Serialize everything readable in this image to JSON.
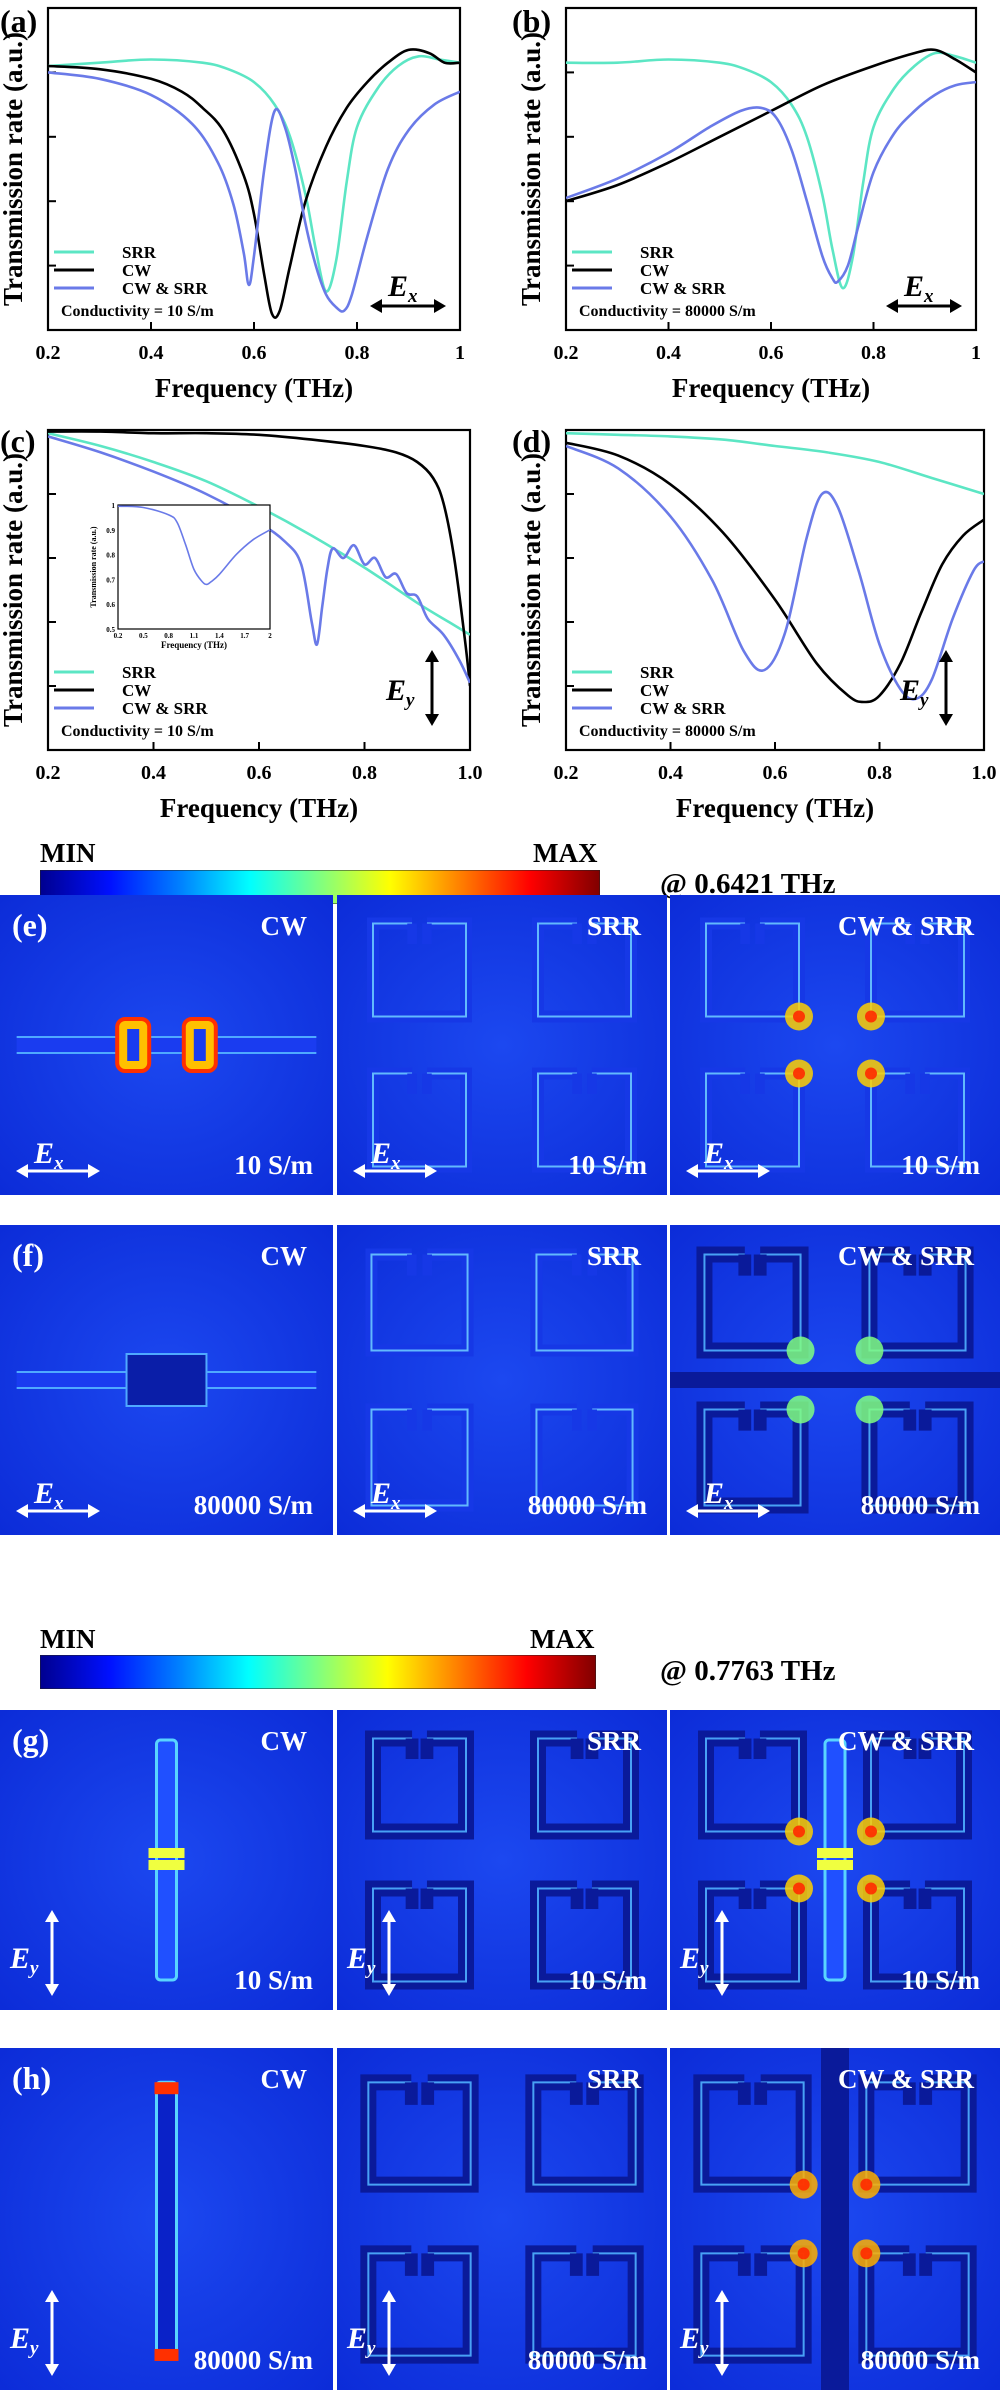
{
  "chart_data": [
    {
      "id": "a",
      "label": "(a)",
      "type": "line",
      "xlabel": "Frequency (THz)",
      "ylabel": "Transmission rate (a.u.)",
      "xlim": [
        0.2,
        1.0
      ],
      "xticks": [
        "0.2",
        "0.4",
        "0.6",
        "0.8",
        "1"
      ],
      "ylim": [
        0,
        1
      ],
      "conductivity": "Conductivity = 10 S/m",
      "polarization": "x",
      "legend_position": "bottom-left",
      "legend": [
        "SRR",
        "CW",
        "CW & SRR"
      ],
      "series": [
        {
          "name": "SRR",
          "color": "#5ce6c4",
          "x": [
            0.2,
            0.3,
            0.4,
            0.5,
            0.55,
            0.6,
            0.64,
            0.67,
            0.7,
            0.72,
            0.74,
            0.76,
            0.78,
            0.8,
            0.84,
            0.88,
            0.92,
            0.96,
            1.0
          ],
          "y": [
            0.82,
            0.83,
            0.84,
            0.83,
            0.81,
            0.77,
            0.7,
            0.6,
            0.42,
            0.25,
            0.12,
            0.22,
            0.46,
            0.63,
            0.75,
            0.82,
            0.85,
            0.84,
            0.83
          ]
        },
        {
          "name": "CW",
          "color": "#000000",
          "x": [
            0.2,
            0.3,
            0.4,
            0.46,
            0.5,
            0.54,
            0.58,
            0.6,
            0.62,
            0.635,
            0.65,
            0.67,
            0.7,
            0.74,
            0.78,
            0.82,
            0.86,
            0.9,
            0.94,
            0.97,
            1.0
          ],
          "y": [
            0.82,
            0.81,
            0.78,
            0.74,
            0.69,
            0.62,
            0.48,
            0.36,
            0.17,
            0.05,
            0.06,
            0.2,
            0.4,
            0.57,
            0.69,
            0.77,
            0.83,
            0.87,
            0.86,
            0.83,
            0.83
          ]
        },
        {
          "name": "CW & SRR",
          "color": "#6a7ae8",
          "x": [
            0.2,
            0.3,
            0.4,
            0.48,
            0.53,
            0.56,
            0.58,
            0.59,
            0.6,
            0.62,
            0.64,
            0.66,
            0.68,
            0.7,
            0.72,
            0.74,
            0.76,
            0.775,
            0.79,
            0.82,
            0.86,
            0.9,
            0.95,
            1.0
          ],
          "y": [
            0.8,
            0.78,
            0.73,
            0.64,
            0.52,
            0.39,
            0.24,
            0.14,
            0.23,
            0.5,
            0.68,
            0.63,
            0.5,
            0.33,
            0.2,
            0.11,
            0.07,
            0.06,
            0.11,
            0.29,
            0.5,
            0.62,
            0.7,
            0.74
          ]
        }
      ]
    },
    {
      "id": "b",
      "label": "(b)",
      "type": "line",
      "xlabel": "Frequency (THz)",
      "ylabel": "Transmission rate (a.u.)",
      "xlim": [
        0.2,
        1.0
      ],
      "xticks": [
        "0.2",
        "0.4",
        "0.6",
        "0.8",
        "1"
      ],
      "ylim": [
        0,
        1
      ],
      "conductivity": "Conductivity = 80000 S/m",
      "polarization": "x",
      "legend_position": "bottom-left",
      "legend": [
        "SRR",
        "CW",
        "CW & SRR"
      ],
      "series": [
        {
          "name": "SRR",
          "color": "#5ce6c4",
          "x": [
            0.2,
            0.3,
            0.4,
            0.5,
            0.55,
            0.6,
            0.64,
            0.67,
            0.7,
            0.72,
            0.74,
            0.76,
            0.78,
            0.8,
            0.84,
            0.88,
            0.92,
            0.96,
            1.0
          ],
          "y": [
            0.83,
            0.83,
            0.84,
            0.83,
            0.81,
            0.77,
            0.7,
            0.6,
            0.42,
            0.25,
            0.13,
            0.23,
            0.46,
            0.63,
            0.75,
            0.82,
            0.86,
            0.85,
            0.83
          ]
        },
        {
          "name": "CW",
          "color": "#000000",
          "x": [
            0.2,
            0.3,
            0.4,
            0.5,
            0.6,
            0.7,
            0.8,
            0.88,
            0.92,
            0.96,
            1.0
          ],
          "y": [
            0.4,
            0.45,
            0.52,
            0.6,
            0.68,
            0.76,
            0.82,
            0.86,
            0.87,
            0.84,
            0.8
          ]
        },
        {
          "name": "CW & SRR",
          "color": "#6a7ae8",
          "x": [
            0.2,
            0.3,
            0.4,
            0.48,
            0.54,
            0.58,
            0.61,
            0.64,
            0.67,
            0.7,
            0.72,
            0.73,
            0.75,
            0.77,
            0.8,
            0.84,
            0.88,
            0.92,
            0.96,
            1.0
          ],
          "y": [
            0.41,
            0.47,
            0.55,
            0.63,
            0.68,
            0.69,
            0.66,
            0.56,
            0.4,
            0.23,
            0.16,
            0.15,
            0.2,
            0.32,
            0.49,
            0.61,
            0.68,
            0.73,
            0.76,
            0.77
          ]
        }
      ]
    },
    {
      "id": "c",
      "label": "(c)",
      "type": "line",
      "xlabel": "Frequency (THz)",
      "ylabel": "Transmission rate (a.u.)",
      "xlim": [
        0.2,
        1.0
      ],
      "xticks": [
        "0.2",
        "0.4",
        "0.6",
        "0.8",
        "1.0"
      ],
      "ylim": [
        0,
        1
      ],
      "conductivity": "Conductivity = 10 S/m",
      "polarization": "y",
      "legend_position": "bottom-left",
      "legend": [
        "SRR",
        "CW",
        "CW & SRR"
      ],
      "series": [
        {
          "name": "SRR",
          "color": "#5ce6c4",
          "x": [
            0.2,
            0.3,
            0.4,
            0.5,
            0.6,
            0.7,
            0.8,
            0.9,
            0.96,
            1.0
          ],
          "y": [
            0.99,
            0.95,
            0.9,
            0.84,
            0.76,
            0.67,
            0.57,
            0.46,
            0.4,
            0.36
          ]
        },
        {
          "name": "CW",
          "color": "#000000",
          "x": [
            0.2,
            0.3,
            0.4,
            0.5,
            0.6,
            0.7,
            0.8,
            0.86,
            0.9,
            0.93,
            0.95,
            0.97,
            0.99,
            1.0
          ],
          "y": [
            0.995,
            0.995,
            0.99,
            0.99,
            0.985,
            0.97,
            0.95,
            0.93,
            0.9,
            0.85,
            0.77,
            0.6,
            0.35,
            0.2
          ]
        },
        {
          "name": "CW & SRR",
          "color": "#6a7ae8",
          "x": [
            0.2,
            0.3,
            0.4,
            0.5,
            0.6,
            0.65,
            0.68,
            0.7,
            0.71,
            0.72,
            0.73,
            0.74,
            0.76,
            0.78,
            0.8,
            0.82,
            0.84,
            0.86,
            0.88,
            0.9,
            0.92,
            0.95,
            0.98,
            1.0
          ],
          "y": [
            0.98,
            0.93,
            0.87,
            0.8,
            0.71,
            0.65,
            0.58,
            0.4,
            0.33,
            0.45,
            0.57,
            0.63,
            0.6,
            0.64,
            0.58,
            0.6,
            0.54,
            0.55,
            0.49,
            0.48,
            0.41,
            0.36,
            0.28,
            0.21
          ]
        }
      ],
      "inset": {
        "xlabel": "Frequency (THz)",
        "ylabel": "Transmission rate (a.u.)",
        "xlim": [
          0.2,
          2.0
        ],
        "ylim": [
          0.5,
          1.0
        ],
        "xticks": [
          "0.2",
          "0.5",
          "0.8",
          "1.1",
          "1.4",
          "1.7",
          "2"
        ],
        "yticks": [
          "0.5",
          "0.6",
          "0.7",
          "0.8",
          "0.9",
          "1"
        ],
        "color": "#6a7ae8",
        "x": [
          0.2,
          0.5,
          0.8,
          0.9,
          1.0,
          1.1,
          1.2,
          1.25,
          1.3,
          1.4,
          1.6,
          1.8,
          2.0
        ],
        "y": [
          0.995,
          0.99,
          0.96,
          0.93,
          0.84,
          0.74,
          0.69,
          0.68,
          0.69,
          0.72,
          0.8,
          0.86,
          0.9
        ]
      }
    },
    {
      "id": "d",
      "label": "(d)",
      "type": "line",
      "xlabel": "Frequency (THz)",
      "ylabel": "Transmission rate (a.u.)",
      "xlim": [
        0.2,
        1.0
      ],
      "xticks": [
        "0.2",
        "0.4",
        "0.6",
        "0.8",
        "1.0"
      ],
      "ylim": [
        0,
        1
      ],
      "conductivity": "Conductivity = 80000 S/m",
      "polarization": "y",
      "legend_position": "bottom-left",
      "legend": [
        "SRR",
        "CW",
        "CW & SRR"
      ],
      "series": [
        {
          "name": "SRR",
          "color": "#5ce6c4",
          "x": [
            0.2,
            0.3,
            0.4,
            0.5,
            0.6,
            0.7,
            0.8,
            0.9,
            1.0
          ],
          "y": [
            0.99,
            0.985,
            0.98,
            0.97,
            0.95,
            0.93,
            0.9,
            0.85,
            0.8
          ]
        },
        {
          "name": "CW",
          "color": "#000000",
          "x": [
            0.2,
            0.3,
            0.4,
            0.5,
            0.6,
            0.68,
            0.74,
            0.77,
            0.8,
            0.84,
            0.88,
            0.92,
            0.96,
            1.0
          ],
          "y": [
            0.96,
            0.92,
            0.83,
            0.68,
            0.47,
            0.27,
            0.17,
            0.15,
            0.17,
            0.27,
            0.43,
            0.58,
            0.67,
            0.72
          ]
        },
        {
          "name": "CW & SRR",
          "color": "#6a7ae8",
          "x": [
            0.2,
            0.3,
            0.4,
            0.48,
            0.54,
            0.58,
            0.62,
            0.66,
            0.69,
            0.72,
            0.76,
            0.8,
            0.84,
            0.87,
            0.9,
            0.94,
            0.98,
            1.0
          ],
          "y": [
            0.95,
            0.88,
            0.73,
            0.53,
            0.31,
            0.25,
            0.37,
            0.66,
            0.8,
            0.76,
            0.56,
            0.33,
            0.19,
            0.16,
            0.22,
            0.41,
            0.56,
            0.59
          ]
        }
      ]
    }
  ],
  "colorbar_top": {
    "min_label": "MIN",
    "max_label": "MAX",
    "frequency": "@ 0.6421 THz"
  },
  "colorbar_bottom": {
    "min_label": "MIN",
    "max_label": "MAX",
    "frequency": "@ 0.7763 THz"
  },
  "colormap": [
    "#00008f",
    "#0010ff",
    "#0080ff",
    "#00ffff",
    "#80ff80",
    "#ffff00",
    "#ff8000",
    "#ff0000",
    "#800000"
  ],
  "field_rows": [
    {
      "label": "(e)",
      "polarization": "x",
      "conductivity": "10 S/m",
      "panels": [
        {
          "title": "CW",
          "kind": "cw-x-10"
        },
        {
          "title": "SRR",
          "kind": "srr-x"
        },
        {
          "title": "CW & SRR",
          "kind": "both-x-10"
        }
      ]
    },
    {
      "label": "(f)",
      "polarization": "x",
      "conductivity": "80000 S/m",
      "panels": [
        {
          "title": "CW",
          "kind": "cw-x-8e4"
        },
        {
          "title": "SRR",
          "kind": "srr-x"
        },
        {
          "title": "CW & SRR",
          "kind": "both-x-8e4"
        }
      ]
    },
    {
      "label": "(g)",
      "polarization": "y",
      "conductivity": "10 S/m",
      "panels": [
        {
          "title": "CW",
          "kind": "cw-y-10"
        },
        {
          "title": "SRR",
          "kind": "srr-y"
        },
        {
          "title": "CW & SRR",
          "kind": "both-y-10"
        }
      ]
    },
    {
      "label": "(h)",
      "polarization": "y",
      "conductivity": "80000 S/m",
      "panels": [
        {
          "title": "CW",
          "kind": "cw-y-8e4"
        },
        {
          "title": "SRR",
          "kind": "srr-y"
        },
        {
          "title": "CW & SRR",
          "kind": "both-y-8e4"
        }
      ]
    }
  ]
}
